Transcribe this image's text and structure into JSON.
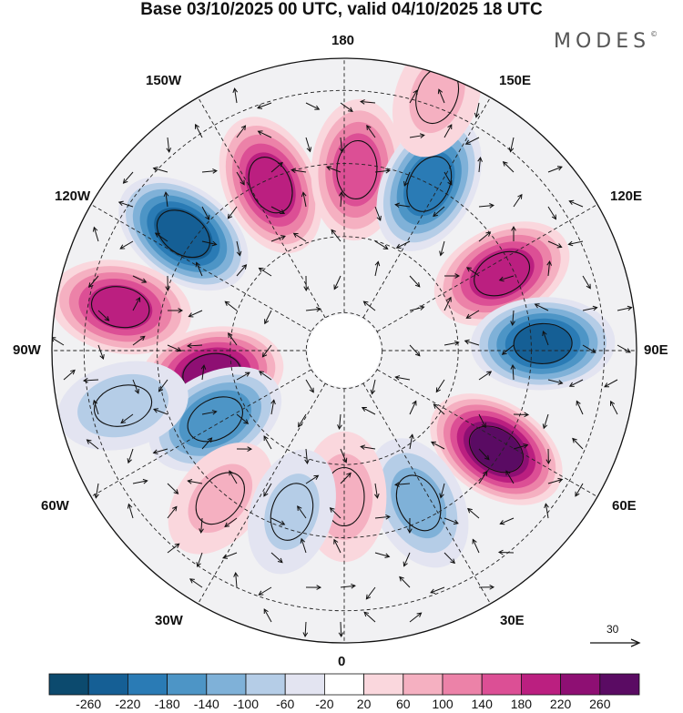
{
  "title": "Base 03/10/2025 00 UTC, valid 04/10/2025 18 UTC",
  "logo": "MODES",
  "lon_labels": {
    "top": "180",
    "bottom": "0",
    "left": "90W",
    "right": "90E",
    "upper_left_1": "150W",
    "upper_left_2": "120W",
    "upper_right_1": "150E",
    "upper_right_2": "120E",
    "lower_left_1": "60W",
    "lower_left_2": "30W",
    "lower_right_1": "60E",
    "lower_right_2": "30E"
  },
  "reference_vector": "30",
  "colorbar": {
    "ticks": [
      "-260",
      "-220",
      "-180",
      "-140",
      "-100",
      "-60",
      "-20",
      "20",
      "60",
      "100",
      "140",
      "180",
      "220",
      "260"
    ],
    "colors": [
      "#0c4a6e",
      "#155f95",
      "#2a7bb5",
      "#4d95c6",
      "#7fb1d8",
      "#b5cde7",
      "#e3e4f1",
      "#ffffff",
      "#fad7dd",
      "#f5b0c1",
      "#ec82a8",
      "#dc4f95",
      "#bb1f80",
      "#8e0f73",
      "#5a0b63"
    ]
  },
  "anomalies": [
    {
      "sign": "neg",
      "lon": -126,
      "r": 0.68,
      "amp": 240
    },
    {
      "sign": "pos",
      "lon": -156,
      "r": 0.62,
      "amp": 200
    },
    {
      "sign": "pos",
      "lon": 176,
      "r": 0.62,
      "amp": 160
    },
    {
      "sign": "neg",
      "lon": 153,
      "r": 0.64,
      "amp": 200
    },
    {
      "sign": "pos",
      "lon": 116,
      "r": 0.6,
      "amp": 200
    },
    {
      "sign": "neg",
      "lon": 92,
      "r": 0.68,
      "amp": 220
    },
    {
      "sign": "pos",
      "lon": 57,
      "r": 0.62,
      "amp": 260
    },
    {
      "sign": "neg",
      "lon": 26,
      "r": 0.58,
      "amp": 110
    },
    {
      "sign": "pos",
      "lon": -101,
      "r": 0.78,
      "amp": 190
    },
    {
      "sign": "pos",
      "lon": -80,
      "r": 0.46,
      "amp": 230
    },
    {
      "sign": "neg",
      "lon": -62,
      "r": 0.5,
      "amp": 170
    },
    {
      "sign": "neg",
      "lon": -76,
      "r": 0.78,
      "amp": 80
    },
    {
      "sign": "pos",
      "lon": 0,
      "r": 0.5,
      "amp": 70
    },
    {
      "sign": "pos",
      "lon": -40,
      "r": 0.66,
      "amp": 60
    },
    {
      "sign": "neg",
      "lon": -18,
      "r": 0.58,
      "amp": 60
    },
    {
      "sign": "pos",
      "lon": 160,
      "r": 0.93,
      "amp": 60
    }
  ]
}
